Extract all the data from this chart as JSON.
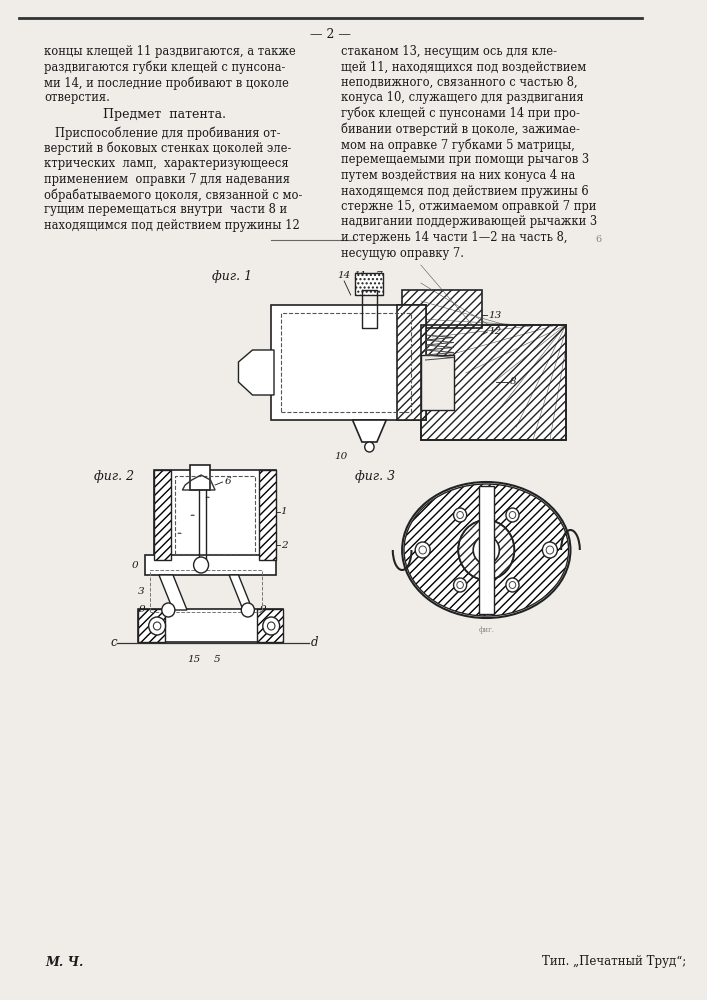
{
  "page_number": "2",
  "background_color": "#f0ede8",
  "text_color": "#1a1a1a",
  "left_col_text": [
    "концы клещей 11 раздвигаются, а также",
    "раздвигаются губки клещей с пунсона-",
    "ми 14, и последние пробивают в цоколе",
    "отверстия."
  ],
  "right_col_text": [
    "стаканом 13, несущим ось для кле-",
    "щей 11, находящихся под воздействием",
    "неподвижного, связанного с частью 8,",
    "конуса 10, служащего для раздвигания",
    "губок клещей с пунсонами 14 при про-",
    "бивании отверстий в цоколе, зажимае-",
    "мом на оправке 7 губками 5 матрицы,",
    "перемещаемыми при помощи рычагов 3",
    "путем воздействия на них конуса 4 на",
    "находящемся под действием пружины 6",
    "стержне 15, отжимаемом оправкой 7 при",
    "надвигании поддерживающей рычажки 3",
    "и стержень 14 части 1—2 на часть 8,",
    "несущую оправку 7."
  ],
  "section_title": "Предмет  патента.",
  "patent_text_left": [
    "   Приспособление для пробивания от-",
    "верстий в боковых стенках цоколей эле-",
    "ктрических  ламп,  характеризующееся",
    "применением  оправки 7 для надевания",
    "обрабатываемого цоколя, связанной с мо-",
    "гущим перемещаться внутри  части 8 и",
    "находящимся под действием пружины 12"
  ],
  "fig1_label": "фиг. 1",
  "fig2_label": "фиг. 2",
  "fig3_label": "фиг. 3",
  "bottom_left": "М. Ч.",
  "bottom_right": "Тип. „Печатный Труд“;"
}
